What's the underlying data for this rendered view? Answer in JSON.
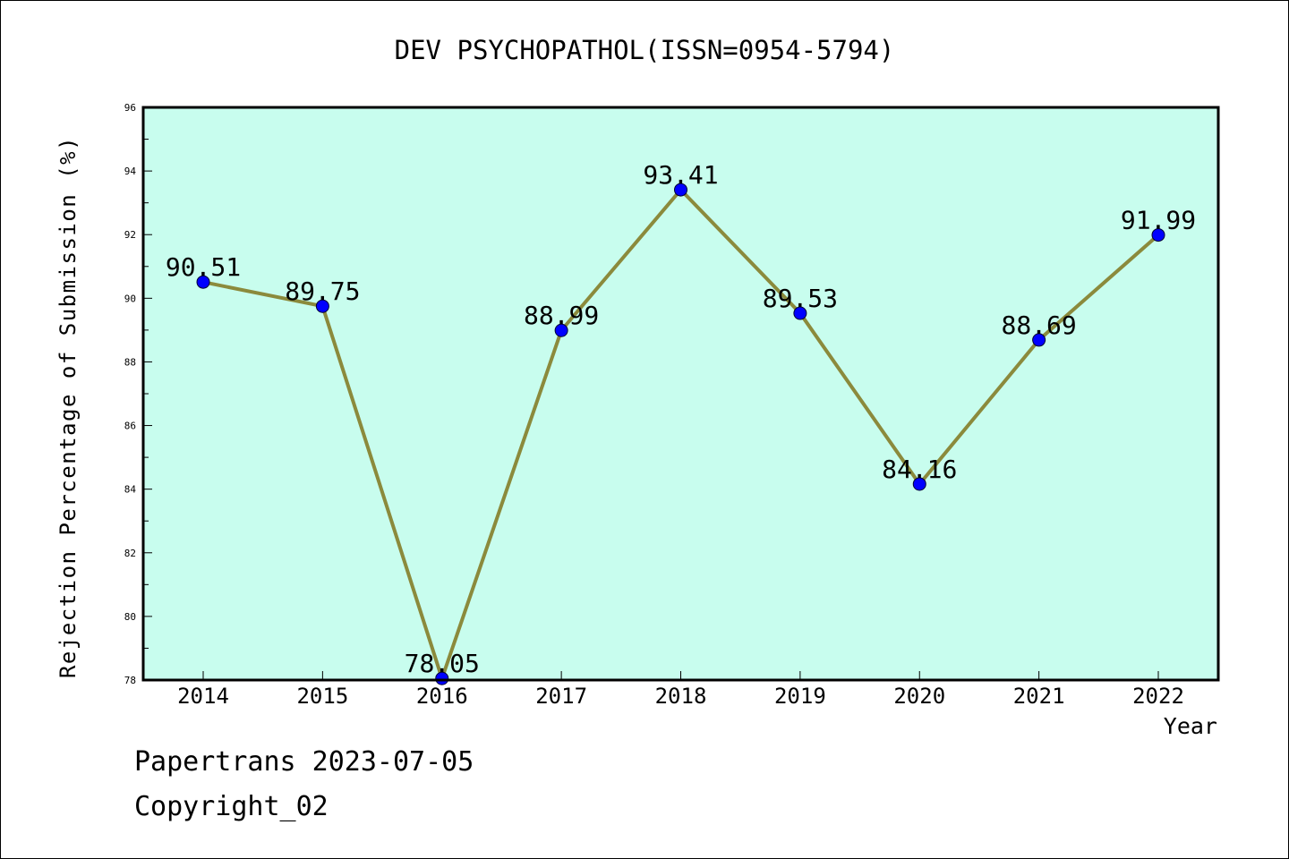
{
  "chart_data": {
    "type": "line",
    "title": "DEV PSYCHOPATHOL(ISSN=0954-5794)",
    "xlabel": "Year",
    "ylabel": "Rejection Percentage of Submission (%)",
    "x": [
      2014,
      2015,
      2016,
      2017,
      2018,
      2019,
      2020,
      2021,
      2022
    ],
    "x_tick_labels": [
      "2014",
      "2015",
      "2016",
      "2017",
      "2018",
      "2019",
      "2020",
      "2021",
      "2022"
    ],
    "series": [
      {
        "values": [
          90.51,
          89.75,
          78.05,
          88.99,
          93.41,
          89.53,
          84.16,
          88.69,
          91.99
        ],
        "labels": [
          "90.51",
          "89.75",
          "78.05",
          "88.99",
          "93.41",
          "89.53",
          "84.16",
          "88.69",
          "91.99"
        ]
      }
    ],
    "ylim": [
      78,
      96
    ],
    "y_ticks": [
      78,
      80,
      82,
      84,
      86,
      88,
      90,
      92,
      94,
      96
    ],
    "y_tick_labels": [
      "78",
      "80",
      "82",
      "84",
      "86",
      "88",
      "90",
      "92",
      "94",
      "96"
    ],
    "grid": false,
    "colors": {
      "plot_background": "#c8fdee",
      "line": "#8b8a3c",
      "marker": "#0000ff"
    }
  },
  "footer": {
    "line1": "Papertrans 2023-07-05",
    "line2": "Copyright_02"
  }
}
